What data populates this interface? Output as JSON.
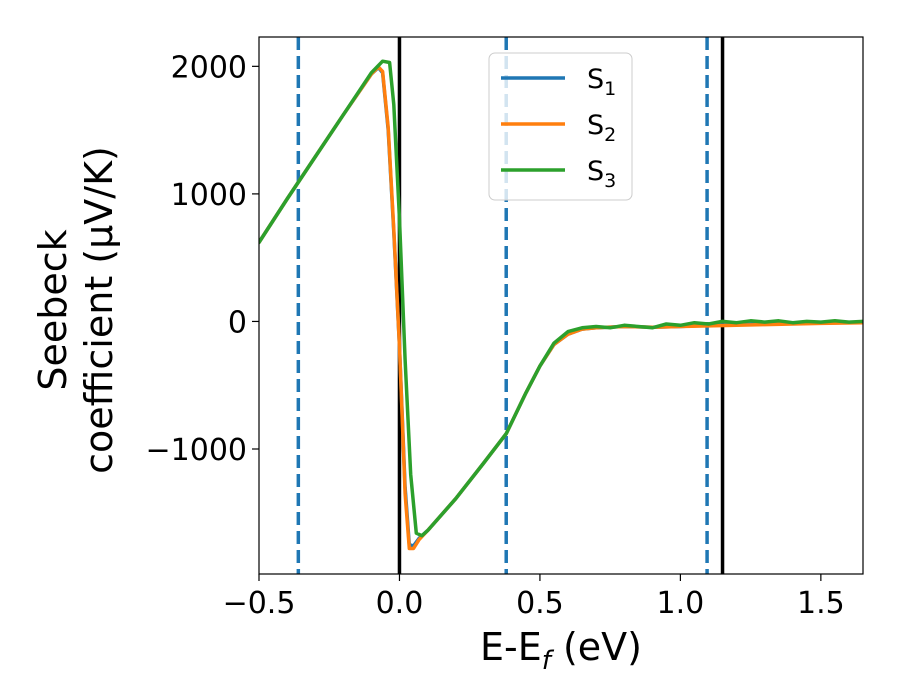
{
  "chart_data": {
    "type": "line",
    "xlabel": {
      "main": "E-E",
      "sub": "f",
      "tail": " (eV)"
    },
    "ylabel": {
      "line1": "Seebeck",
      "line2": "coefficient  (μV/K)"
    },
    "xlim": [
      -0.5,
      1.65
    ],
    "ylim": [
      -1980,
      2230
    ],
    "x_ticks": [
      -0.5,
      0.0,
      0.5,
      1.0,
      1.5
    ],
    "x_tick_labels": [
      "−0.5",
      "0.0",
      "0.5",
      "1.0",
      "1.5"
    ],
    "y_ticks": [
      -1000,
      0,
      1000,
      2000
    ],
    "y_tick_labels": [
      "−1000",
      "0",
      "1000",
      "2000"
    ],
    "grid": false,
    "legend_position": "top-center",
    "series": [
      {
        "name": {
          "base": "S",
          "sub": "1"
        },
        "color": "#1f77b4",
        "points": [
          [
            -0.5,
            620
          ],
          [
            -0.4,
            960
          ],
          [
            -0.3,
            1290
          ],
          [
            -0.2,
            1620
          ],
          [
            -0.1,
            1940
          ],
          [
            -0.075,
            1990
          ],
          [
            -0.06,
            1950
          ],
          [
            -0.04,
            1500
          ],
          [
            -0.02,
            700
          ],
          [
            0.0,
            -200
          ],
          [
            0.02,
            -1300
          ],
          [
            0.035,
            -1750
          ],
          [
            0.05,
            -1760
          ],
          [
            0.07,
            -1700
          ],
          [
            0.1,
            -1640
          ],
          [
            0.2,
            -1390
          ],
          [
            0.3,
            -1110
          ],
          [
            0.38,
            -880
          ],
          [
            0.45,
            -560
          ],
          [
            0.5,
            -350
          ],
          [
            0.55,
            -180
          ],
          [
            0.6,
            -100
          ],
          [
            0.65,
            -60
          ],
          [
            0.7,
            -50
          ],
          [
            0.8,
            -40
          ],
          [
            0.9,
            -45
          ],
          [
            1.0,
            -40
          ],
          [
            1.1,
            -30
          ],
          [
            1.2,
            -25
          ],
          [
            1.3,
            -20
          ],
          [
            1.4,
            -15
          ],
          [
            1.5,
            -12
          ],
          [
            1.65,
            -8
          ]
        ]
      },
      {
        "name": {
          "base": "S",
          "sub": "2"
        },
        "color": "#ff7f0e",
        "points": [
          [
            -0.5,
            620
          ],
          [
            -0.4,
            960
          ],
          [
            -0.3,
            1290
          ],
          [
            -0.2,
            1620
          ],
          [
            -0.1,
            1940
          ],
          [
            -0.075,
            1995
          ],
          [
            -0.06,
            1960
          ],
          [
            -0.04,
            1520
          ],
          [
            -0.02,
            720
          ],
          [
            0.0,
            -200
          ],
          [
            0.02,
            -1350
          ],
          [
            0.035,
            -1780
          ],
          [
            0.05,
            -1780
          ],
          [
            0.07,
            -1710
          ],
          [
            0.1,
            -1640
          ],
          [
            0.2,
            -1390
          ],
          [
            0.3,
            -1110
          ],
          [
            0.38,
            -880
          ],
          [
            0.45,
            -560
          ],
          [
            0.5,
            -350
          ],
          [
            0.55,
            -180
          ],
          [
            0.6,
            -100
          ],
          [
            0.65,
            -60
          ],
          [
            0.7,
            -50
          ],
          [
            0.8,
            -40
          ],
          [
            0.9,
            -45
          ],
          [
            1.0,
            -40
          ],
          [
            1.1,
            -35
          ],
          [
            1.2,
            -30
          ],
          [
            1.3,
            -25
          ],
          [
            1.4,
            -20
          ],
          [
            1.5,
            -15
          ],
          [
            1.65,
            -10
          ]
        ]
      },
      {
        "name": {
          "base": "S",
          "sub": "3"
        },
        "color": "#2ca02c",
        "points": [
          [
            -0.5,
            620
          ],
          [
            -0.4,
            960
          ],
          [
            -0.3,
            1290
          ],
          [
            -0.2,
            1620
          ],
          [
            -0.1,
            1950
          ],
          [
            -0.06,
            2040
          ],
          [
            -0.035,
            2030
          ],
          [
            -0.02,
            1700
          ],
          [
            0.0,
            800
          ],
          [
            0.02,
            -300
          ],
          [
            0.04,
            -1200
          ],
          [
            0.06,
            -1660
          ],
          [
            0.08,
            -1680
          ],
          [
            0.1,
            -1640
          ],
          [
            0.2,
            -1390
          ],
          [
            0.3,
            -1110
          ],
          [
            0.38,
            -880
          ],
          [
            0.45,
            -560
          ],
          [
            0.5,
            -350
          ],
          [
            0.55,
            -170
          ],
          [
            0.6,
            -80
          ],
          [
            0.65,
            -50
          ],
          [
            0.7,
            -40
          ],
          [
            0.75,
            -50
          ],
          [
            0.8,
            -30
          ],
          [
            0.85,
            -40
          ],
          [
            0.9,
            -50
          ],
          [
            0.95,
            -20
          ],
          [
            1.0,
            -30
          ],
          [
            1.05,
            -10
          ],
          [
            1.1,
            -20
          ],
          [
            1.15,
            0
          ],
          [
            1.2,
            -10
          ],
          [
            1.25,
            5
          ],
          [
            1.3,
            -5
          ],
          [
            1.35,
            5
          ],
          [
            1.4,
            -10
          ],
          [
            1.45,
            0
          ],
          [
            1.5,
            -5
          ],
          [
            1.55,
            5
          ],
          [
            1.6,
            -5
          ],
          [
            1.65,
            0
          ]
        ]
      }
    ],
    "vertical_lines": [
      {
        "x": -0.36,
        "style": "dashed",
        "color": "#1f77b4"
      },
      {
        "x": 0.0,
        "style": "solid",
        "color": "#000000"
      },
      {
        "x": 0.38,
        "style": "dashed",
        "color": "#1f77b4"
      },
      {
        "x": 1.095,
        "style": "dashed",
        "color": "#1f77b4"
      },
      {
        "x": 1.15,
        "style": "solid",
        "color": "#000000"
      }
    ]
  }
}
